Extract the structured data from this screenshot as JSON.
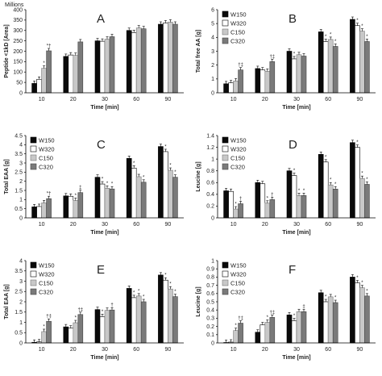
{
  "legend_labels": [
    "W150",
    "W320",
    "C150",
    "C320"
  ],
  "series_colors": [
    "#0a0a0a",
    "#ffffff",
    "#c8c8c8",
    "#7a7a7a"
  ],
  "chart_data": [
    {
      "type": "bar",
      "panel": "A",
      "categories": [
        "10",
        "20",
        "30",
        "60",
        "90"
      ],
      "xlabel": "Time [min]",
      "ylabel": "Peptide <1kD [Area]",
      "top_note": "Millions",
      "ylim": [
        0,
        400
      ],
      "ticks": [
        0,
        50,
        100,
        150,
        200,
        250,
        300,
        350,
        400
      ],
      "legend": "none",
      "series": [
        {
          "values": [
            45,
            175,
            250,
            300,
            330
          ],
          "marks": [
            "",
            "",
            "",
            "",
            ""
          ]
        },
        {
          "values": [
            65,
            182,
            248,
            290,
            336
          ],
          "marks": [
            "",
            "",
            "",
            "",
            ""
          ]
        },
        {
          "values": [
            118,
            180,
            258,
            312,
            340
          ],
          "marks": [
            "*",
            "",
            "",
            "",
            ""
          ]
        },
        {
          "values": [
            202,
            245,
            270,
            308,
            330
          ],
          "marks": [
            "*†",
            "",
            "",
            "",
            ""
          ]
        }
      ]
    },
    {
      "type": "bar",
      "panel": "B",
      "categories": [
        "10",
        "20",
        "30",
        "60",
        "90"
      ],
      "xlabel": "Time [min]",
      "ylabel": "Total free AA [g]",
      "ylim": [
        0,
        6
      ],
      "ticks": [
        0,
        1,
        2,
        3,
        4,
        5,
        6
      ],
      "legend": "top-left",
      "series": [
        {
          "values": [
            0.65,
            1.75,
            3.0,
            4.4,
            5.3
          ],
          "marks": [
            "",
            "",
            "",
            "",
            ""
          ]
        },
        {
          "values": [
            0.72,
            1.65,
            2.45,
            3.7,
            4.85
          ],
          "marks": [
            "",
            "",
            "*",
            "*",
            "*"
          ]
        },
        {
          "values": [
            0.85,
            1.55,
            2.75,
            3.85,
            4.45
          ],
          "marks": [
            "",
            "",
            "",
            "*",
            "*"
          ]
        },
        {
          "values": [
            1.65,
            2.25,
            2.65,
            3.35,
            3.7
          ],
          "marks": [
            "†‡",
            "†‡",
            "",
            "*",
            "*"
          ]
        }
      ]
    },
    {
      "type": "bar",
      "panel": "C",
      "categories": [
        "10",
        "20",
        "30",
        "60",
        "90"
      ],
      "xlabel": "Time [min]",
      "ylabel": "Total EAA [g]",
      "ylim": [
        0,
        4.5
      ],
      "ticks": [
        0,
        0.5,
        1,
        1.5,
        2,
        2.5,
        3,
        3.5,
        4,
        4.5
      ],
      "legend": "top-left",
      "series": [
        {
          "values": [
            0.6,
            1.2,
            2.22,
            3.25,
            3.9
          ],
          "marks": [
            "",
            "",
            "",
            "",
            ""
          ]
        },
        {
          "values": [
            0.62,
            1.18,
            1.85,
            2.72,
            3.62
          ],
          "marks": [
            "",
            "",
            "*",
            "*",
            "*"
          ]
        },
        {
          "values": [
            0.82,
            0.95,
            1.62,
            2.25,
            2.6
          ],
          "marks": [
            "",
            "*",
            "*",
            "",
            "*"
          ]
        },
        {
          "values": [
            1.05,
            1.38,
            1.58,
            1.95,
            2.22
          ],
          "marks": [
            "*†",
            "‡",
            "*",
            "*",
            "*"
          ]
        }
      ]
    },
    {
      "type": "bar",
      "panel": "D",
      "categories": [
        "10",
        "20",
        "30",
        "60",
        "90"
      ],
      "xlabel": "Time [min]",
      "ylabel": "Leucine [g]",
      "ylim": [
        0,
        1.4
      ],
      "ticks": [
        0,
        0.2,
        0.4,
        0.6,
        0.8,
        1,
        1.2,
        1.4
      ],
      "legend": "top-left",
      "series": [
        {
          "values": [
            0.46,
            0.6,
            0.8,
            1.08,
            1.28
          ],
          "marks": [
            "",
            "",
            "",
            "",
            ""
          ]
        },
        {
          "values": [
            0.45,
            0.58,
            0.72,
            0.95,
            1.2
          ],
          "marks": [
            "",
            "",
            "*",
            "*",
            "*"
          ]
        },
        {
          "values": [
            0.15,
            0.25,
            0.38,
            0.56,
            0.67
          ],
          "marks": [
            "*",
            "*",
            "*",
            "*",
            "*"
          ]
        },
        {
          "values": [
            0.24,
            0.31,
            0.38,
            0.49,
            0.57
          ],
          "marks": [
            "†",
            "†",
            "*",
            "*",
            "*"
          ]
        }
      ]
    },
    {
      "type": "bar",
      "panel": "E",
      "categories": [
        "10",
        "20",
        "30",
        "60",
        "90"
      ],
      "xlabel": "Time [min]",
      "ylabel": "Total EAA [g]",
      "ylim": [
        0,
        4
      ],
      "ticks": [
        0,
        0.5,
        1,
        1.5,
        2,
        2.5,
        3,
        3.5,
        4
      ],
      "legend": "top-left",
      "series": [
        {
          "values": [
            0.03,
            0.78,
            1.62,
            2.65,
            3.3
          ],
          "marks": [
            "",
            "",
            "",
            "",
            ""
          ]
        },
        {
          "values": [
            0.05,
            0.72,
            1.28,
            2.2,
            3.05
          ],
          "marks": [
            "",
            "",
            "*",
            "*",
            "*"
          ]
        },
        {
          "values": [
            0.55,
            0.98,
            1.58,
            2.28,
            2.62
          ],
          "marks": [
            "*",
            "*",
            "",
            "*",
            "*"
          ]
        },
        {
          "values": [
            1.05,
            1.38,
            1.6,
            2.0,
            2.25
          ],
          "marks": [
            "†‡",
            "†‡",
            "†",
            "*",
            "*"
          ]
        }
      ]
    },
    {
      "type": "bar",
      "panel": "F",
      "categories": [
        "10",
        "20",
        "30",
        "60",
        "90"
      ],
      "xlabel": "Time [min]",
      "ylabel": "Leucine [g]",
      "ylim": [
        0,
        1
      ],
      "ticks": [
        0,
        0.1,
        0.2,
        0.3,
        0.4,
        0.5,
        0.6,
        0.7,
        0.8,
        0.9,
        1
      ],
      "legend": "top-left",
      "series": [
        {
          "values": [
            0.005,
            0.13,
            0.34,
            0.61,
            0.8
          ],
          "marks": [
            "",
            "",
            "",
            "",
            ""
          ]
        },
        {
          "values": [
            0.01,
            0.22,
            0.27,
            0.5,
            0.73
          ],
          "marks": [
            "",
            "",
            "*",
            "*",
            "*"
          ]
        },
        {
          "values": [
            0.15,
            0.25,
            0.38,
            0.56,
            0.67
          ],
          "marks": [
            "*",
            "*",
            "",
            "",
            "*"
          ]
        },
        {
          "values": [
            0.24,
            0.31,
            0.38,
            0.49,
            0.57
          ],
          "marks": [
            "†‡",
            "†‡",
            "‡",
            "*",
            "*"
          ]
        }
      ]
    }
  ]
}
